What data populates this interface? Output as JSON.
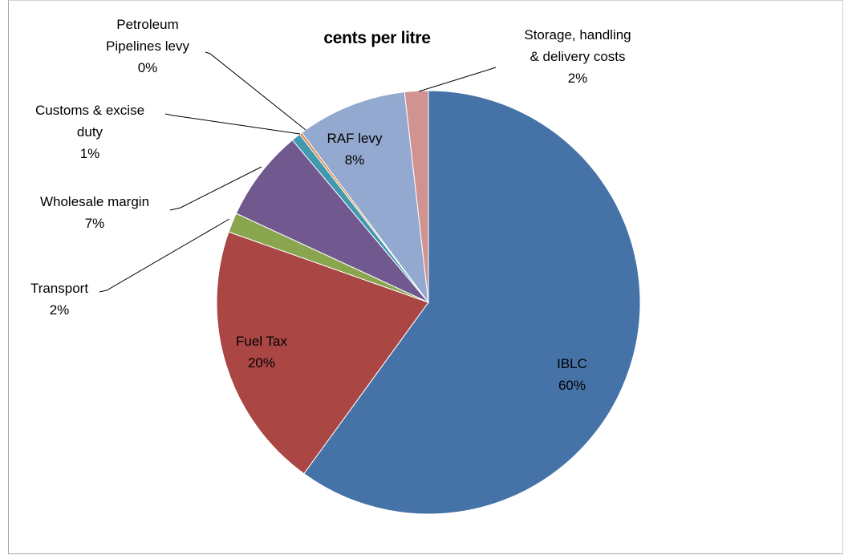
{
  "chart_data": {
    "type": "pie",
    "title": "cents per litre",
    "slices": [
      {
        "name": "IBLC",
        "lines": [
          "IBLC",
          "60%"
        ],
        "value": 60.0,
        "color": "#4572a7"
      },
      {
        "name": "Fuel Tax",
        "lines": [
          "Fuel Tax",
          "20%"
        ],
        "value": 20.4,
        "color": "#aa4643"
      },
      {
        "name": "Transport",
        "lines": [
          "Transport",
          "2%"
        ],
        "value": 1.5,
        "color": "#89a54e"
      },
      {
        "name": "Wholesale margin",
        "lines": [
          "Wholesale margin",
          "7%"
        ],
        "value": 7.0,
        "color": "#71588f"
      },
      {
        "name": "Customs & excise duty",
        "lines": [
          "Customs & excise",
          "duty",
          "1%"
        ],
        "value": 0.7,
        "color": "#4198af"
      },
      {
        "name": "Petroleum Pipelines levy",
        "lines": [
          "Petroleum",
          "Pipelines levy",
          "0%"
        ],
        "value": 0.2,
        "color": "#db843d"
      },
      {
        "name": "RAF levy",
        "lines": [
          "RAF levy",
          "8%"
        ],
        "value": 8.4,
        "color": "#93a9cf"
      },
      {
        "name": "Storage, handling & delivery costs",
        "lines": [
          "Storage, handling",
          "& delivery costs",
          "2%"
        ],
        "value": 1.8,
        "color": "#d19392"
      }
    ]
  }
}
